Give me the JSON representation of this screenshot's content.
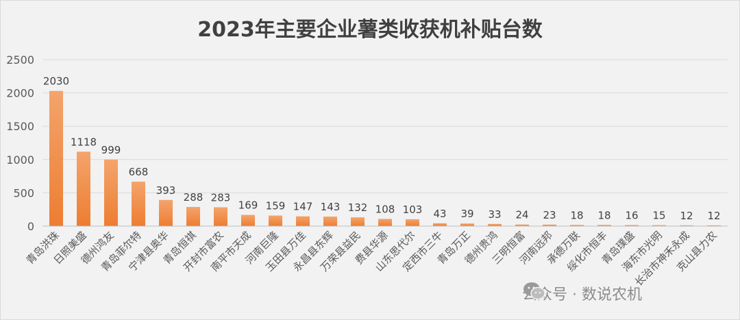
{
  "chart_data": {
    "type": "bar",
    "title": "2023年主要企业薯类收获机补贴台数",
    "categories": [
      "青岛洪珠",
      "日照美盛",
      "德州鸿友",
      "青岛菲尔特",
      "宁津县奥华",
      "青岛恒祺",
      "开封市富农",
      "南平市天成",
      "河南巨隆",
      "玉田县万佳",
      "永昌县东辉",
      "万荣县益民",
      "费县华源",
      "山东思代尔",
      "定西市三牛",
      "青岛万正",
      "德州贵鸿",
      "三明恒富",
      "河南远邦",
      "承德万联",
      "绥化市恒丰",
      "青岛璞盛",
      "海东市光明",
      "长治市神禾永成",
      "克山县力农"
    ],
    "values": [
      2030,
      1118,
      999,
      668,
      393,
      288,
      283,
      169,
      159,
      147,
      143,
      132,
      108,
      103,
      43,
      39,
      33,
      24,
      23,
      18,
      18,
      16,
      15,
      12,
      12
    ],
    "ylim": [
      0,
      2500
    ],
    "yticks": [
      0,
      500,
      1000,
      1500,
      2000,
      2500
    ],
    "bar_color": "#ed7d31",
    "grid": true
  },
  "watermark": {
    "icon": "wechat-icon",
    "text": "公众号 · 数说农机"
  }
}
